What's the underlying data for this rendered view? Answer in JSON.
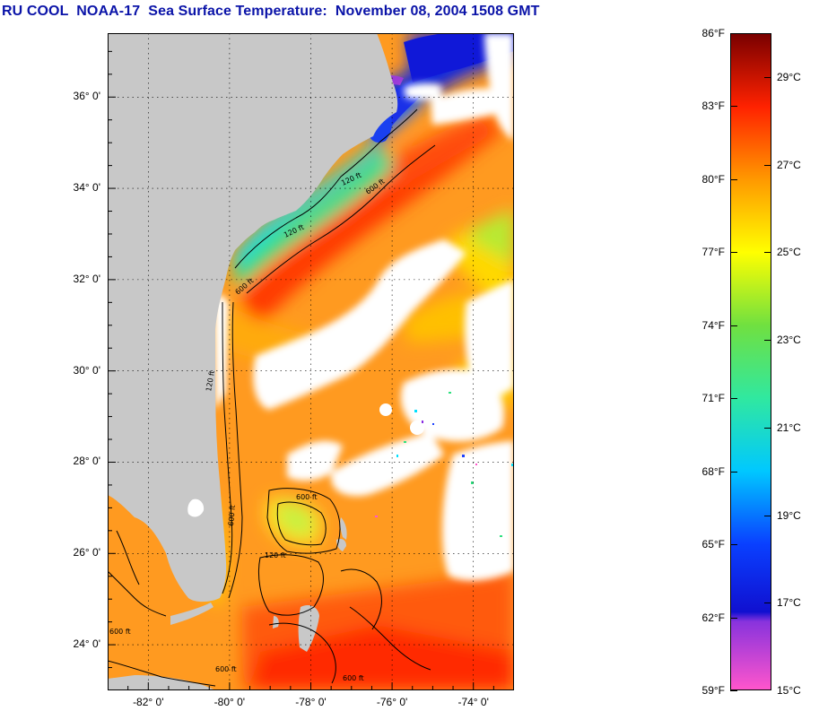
{
  "title": "RU COOL  NOAA-17  Sea Surface Temperature:  November 08, 2004 1508 GMT",
  "map": {
    "lat_labels": [
      {
        "text": "36° 0'",
        "lat": 36
      },
      {
        "text": "34° 0'",
        "lat": 34
      },
      {
        "text": "32° 0'",
        "lat": 32
      },
      {
        "text": "30° 0'",
        "lat": 30
      },
      {
        "text": "28° 0'",
        "lat": 28
      },
      {
        "text": "26° 0'",
        "lat": 26
      },
      {
        "text": "24° 0'",
        "lat": 24
      }
    ],
    "lon_labels": [
      {
        "text": "-82° 0'",
        "lon": -82
      },
      {
        "text": "-80° 0'",
        "lon": -80
      },
      {
        "text": "-78° 0'",
        "lon": -78
      },
      {
        "text": "-76° 0'",
        "lon": -76
      },
      {
        "text": "-74° 0'",
        "lon": -74
      }
    ],
    "lat_range": [
      23.0,
      37.4
    ],
    "lon_range": [
      -83.0,
      -73.0
    ],
    "contour_labels": [
      "120 ft",
      "600 ft"
    ],
    "land_color": "#c8c8c8",
    "cloud_color": "#ffffff"
  },
  "colorbar": {
    "fahrenheit_labels": [
      "86°F",
      "83°F",
      "80°F",
      "77°F",
      "74°F",
      "71°F",
      "68°F",
      "65°F",
      "62°F",
      "59°F"
    ],
    "fahrenheit_values": [
      86,
      83,
      80,
      77,
      74,
      71,
      68,
      65,
      62,
      59
    ],
    "celsius_labels": [
      "29°C",
      "27°C",
      "25°C",
      "23°C",
      "21°C",
      "19°C",
      "17°C",
      "15°C"
    ],
    "celsius_values": [
      29,
      27,
      25,
      23,
      21,
      19,
      17,
      15
    ],
    "f_range": [
      59,
      86
    ],
    "stops": [
      {
        "f": 59,
        "color": "#ff55cc"
      },
      {
        "f": 61.8,
        "color": "#8833dd"
      },
      {
        "f": 62.2,
        "color": "#1010d0"
      },
      {
        "f": 65,
        "color": "#0a40ff"
      },
      {
        "f": 68,
        "color": "#00c8ff"
      },
      {
        "f": 71,
        "color": "#30e8a0"
      },
      {
        "f": 74,
        "color": "#70e040"
      },
      {
        "f": 77,
        "color": "#ffff00"
      },
      {
        "f": 80,
        "color": "#ff9900"
      },
      {
        "f": 83,
        "color": "#ff2200"
      },
      {
        "f": 86,
        "color": "#7a0000"
      }
    ]
  }
}
